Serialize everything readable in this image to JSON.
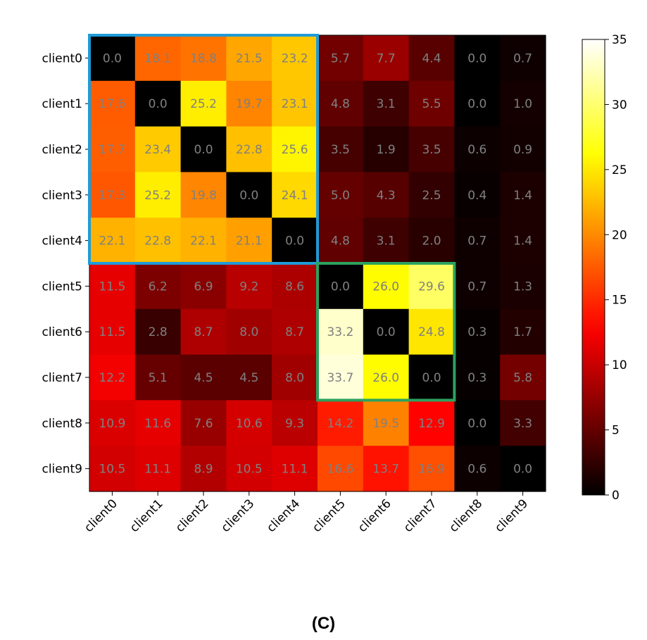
{
  "caption": "(C)",
  "chart_data": {
    "type": "heatmap",
    "colormap": "hot",
    "x_labels": [
      "client0",
      "client1",
      "client2",
      "client3",
      "client4",
      "client5",
      "client6",
      "client7",
      "client8",
      "client9"
    ],
    "y_labels": [
      "client0",
      "client1",
      "client2",
      "client3",
      "client4",
      "client5",
      "client6",
      "client7",
      "client8",
      "client9"
    ],
    "values": [
      [
        0.0,
        18.1,
        18.8,
        21.5,
        23.2,
        5.7,
        7.7,
        4.4,
        0.0,
        0.7
      ],
      [
        17.6,
        0.0,
        25.2,
        19.7,
        23.1,
        4.8,
        3.1,
        5.5,
        0.0,
        1.0
      ],
      [
        17.7,
        23.4,
        0.0,
        22.8,
        25.6,
        3.5,
        1.9,
        3.5,
        0.6,
        0.9
      ],
      [
        17.3,
        25.2,
        19.8,
        0.0,
        24.1,
        5.0,
        4.3,
        2.5,
        0.4,
        1.4
      ],
      [
        22.1,
        22.8,
        22.1,
        21.1,
        0.0,
        4.8,
        3.1,
        2.0,
        0.7,
        1.4
      ],
      [
        11.5,
        6.2,
        6.9,
        9.2,
        8.6,
        0.0,
        26.0,
        29.6,
        0.7,
        1.3
      ],
      [
        11.5,
        2.8,
        8.7,
        8.0,
        8.7,
        33.2,
        0.0,
        24.8,
        0.3,
        1.7
      ],
      [
        12.2,
        5.1,
        4.5,
        4.5,
        8.0,
        33.7,
        26.0,
        0.0,
        0.3,
        5.8
      ],
      [
        10.9,
        11.6,
        7.6,
        10.6,
        9.3,
        14.2,
        19.5,
        12.9,
        0.0,
        3.3
      ],
      [
        10.5,
        11.1,
        8.9,
        10.5,
        11.1,
        16.6,
        13.7,
        16.9,
        0.6,
        0.0
      ]
    ],
    "vmin": 0,
    "vmax": 35,
    "colorbar_ticks": [
      0,
      5,
      10,
      15,
      20,
      25,
      30,
      35
    ],
    "cell_text_color": "#808080",
    "highlight_boxes": [
      {
        "row_start": 0,
        "row_end": 4,
        "col_start": 0,
        "col_end": 4,
        "color": "#1f9bd7"
      },
      {
        "row_start": 5,
        "row_end": 7,
        "col_start": 5,
        "col_end": 7,
        "color": "#2ca25f"
      }
    ]
  }
}
